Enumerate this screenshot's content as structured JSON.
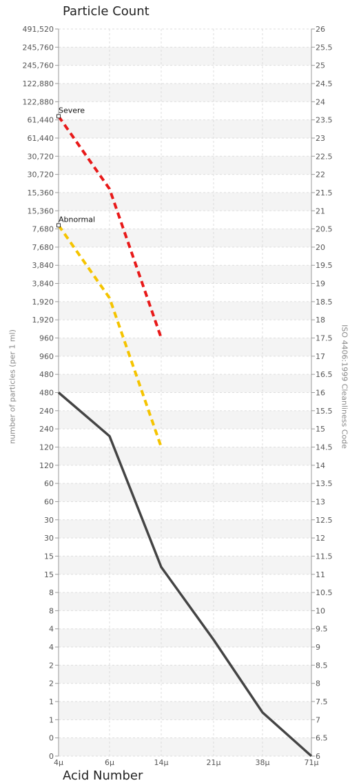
{
  "chart_data": {
    "type": "line",
    "title": "Particle Count",
    "bottom_title": "Acid Number",
    "ylabel": "number of particles (per 1 ml)",
    "y2label": "ISO 4406:1999 Cleanliness Code",
    "x_categories": [
      "4μ",
      "6μ",
      "14μ",
      "21μ",
      "38μ",
      "71μ"
    ],
    "x_tick_labels": [
      "4μ",
      "6μ",
      "14μ",
      "21μ",
      "38μ",
      "71μ"
    ],
    "y_range": [
      6,
      26
    ],
    "y_right_ticks": [
      "6",
      "6.5",
      "7",
      "7.5",
      "8",
      "8.5",
      "9",
      "9.5",
      "10",
      "10.5",
      "11",
      "11.5",
      "12",
      "12.5",
      "13",
      "13.5",
      "14",
      "14.5",
      "15",
      "15.5",
      "16",
      "16.5",
      "17",
      "17.5",
      "18",
      "18.5",
      "19",
      "19.5",
      "20",
      "20.5",
      "21",
      "21.5",
      "22",
      "22.5",
      "23",
      "23.5",
      "24",
      "24.5",
      "25",
      "25.5",
      "26"
    ],
    "y_left_ticks": [
      "0",
      "0",
      "1",
      "1",
      "2",
      "2",
      "4",
      "4",
      "8",
      "8",
      "15",
      "15",
      "30",
      "30",
      "60",
      "60",
      "120",
      "120",
      "240",
      "240",
      "480",
      "480",
      "960",
      "960",
      "1,920",
      "1,920",
      "3,840",
      "3,840",
      "7,680",
      "7,680",
      "15,360",
      "15,360",
      "30,720",
      "30,720",
      "61,440",
      "61,440",
      "122,880",
      "122,880",
      "245,760",
      "245,760",
      "491,520"
    ],
    "grid": true,
    "series": [
      {
        "name": "",
        "color": "#444444",
        "dash": false,
        "x_index": [
          0,
          1,
          2,
          3,
          4,
          5
        ],
        "values": [
          16,
          14.8,
          11.2,
          9.2,
          7.2,
          6
        ]
      },
      {
        "name": "",
        "color": "#e81919",
        "dash": true,
        "x_index": [
          0,
          1,
          2
        ],
        "values": [
          23.6,
          21.6,
          17.5
        ]
      },
      {
        "name": "",
        "color": "#f5c400",
        "dash": true,
        "x_index": [
          0,
          1,
          2
        ],
        "values": [
          20.6,
          18.6,
          14.5
        ]
      }
    ],
    "annotations": [
      {
        "text": "Severe",
        "x_index": 0,
        "value": 23.6
      },
      {
        "text": "Abnormal",
        "x_index": 0,
        "value": 20.6
      }
    ]
  }
}
